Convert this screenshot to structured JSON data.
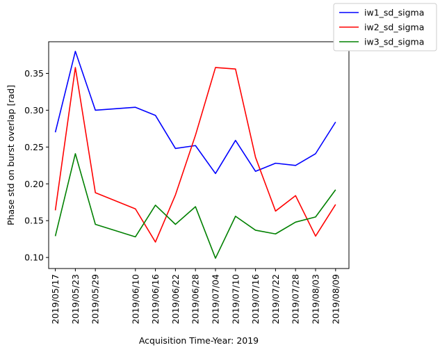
{
  "chart_data": {
    "type": "line",
    "title": "",
    "xlabel": "Acquisition Time-Year: 2019",
    "ylabel": "Phase std on burst overlap [rad]",
    "x": [
      "2019/05/17",
      "2019/05/23",
      "2019/05/29",
      "2019/06/10",
      "2019/06/16",
      "2019/06/22",
      "2019/06/28",
      "2019/07/04",
      "2019/07/10",
      "2019/07/16",
      "2019/07/22",
      "2019/07/28",
      "2019/08/03",
      "2019/08/09"
    ],
    "xticks": [
      "2019/05/17",
      "2019/05/23",
      "2019/05/29",
      "2019/06/10",
      "2019/06/16",
      "2019/06/22",
      "2019/06/28",
      "2019/07/04",
      "2019/07/10",
      "2019/07/16",
      "2019/07/22",
      "2019/07/28",
      "2019/08/03",
      "2019/08/09"
    ],
    "xlim": [
      "2019/05/15",
      "2019/08/13"
    ],
    "ylim": [
      0.085,
      0.393
    ],
    "yticks": [
      0.1,
      0.15,
      0.2,
      0.25,
      0.3,
      0.35
    ],
    "grid": false,
    "legend_position": "top-right",
    "series": [
      {
        "name": "iw1_sd_sigma",
        "color": "#0000ff",
        "values": [
          0.27,
          0.38,
          0.3,
          0.304,
          0.293,
          0.248,
          0.252,
          0.214,
          0.259,
          0.217,
          0.228,
          0.225,
          0.241,
          0.284
        ]
      },
      {
        "name": "iw2_sd_sigma",
        "color": "#ff0000",
        "values": [
          0.164,
          0.358,
          0.188,
          0.166,
          0.121,
          0.185,
          0.266,
          0.358,
          0.356,
          0.236,
          0.163,
          0.184,
          0.129,
          0.172
        ]
      },
      {
        "name": "iw3_sd_sigma",
        "color": "#008000",
        "values": [
          0.129,
          0.241,
          0.145,
          0.128,
          0.171,
          0.145,
          0.169,
          0.099,
          0.156,
          0.137,
          0.132,
          0.148,
          0.155,
          0.192
        ]
      }
    ]
  }
}
